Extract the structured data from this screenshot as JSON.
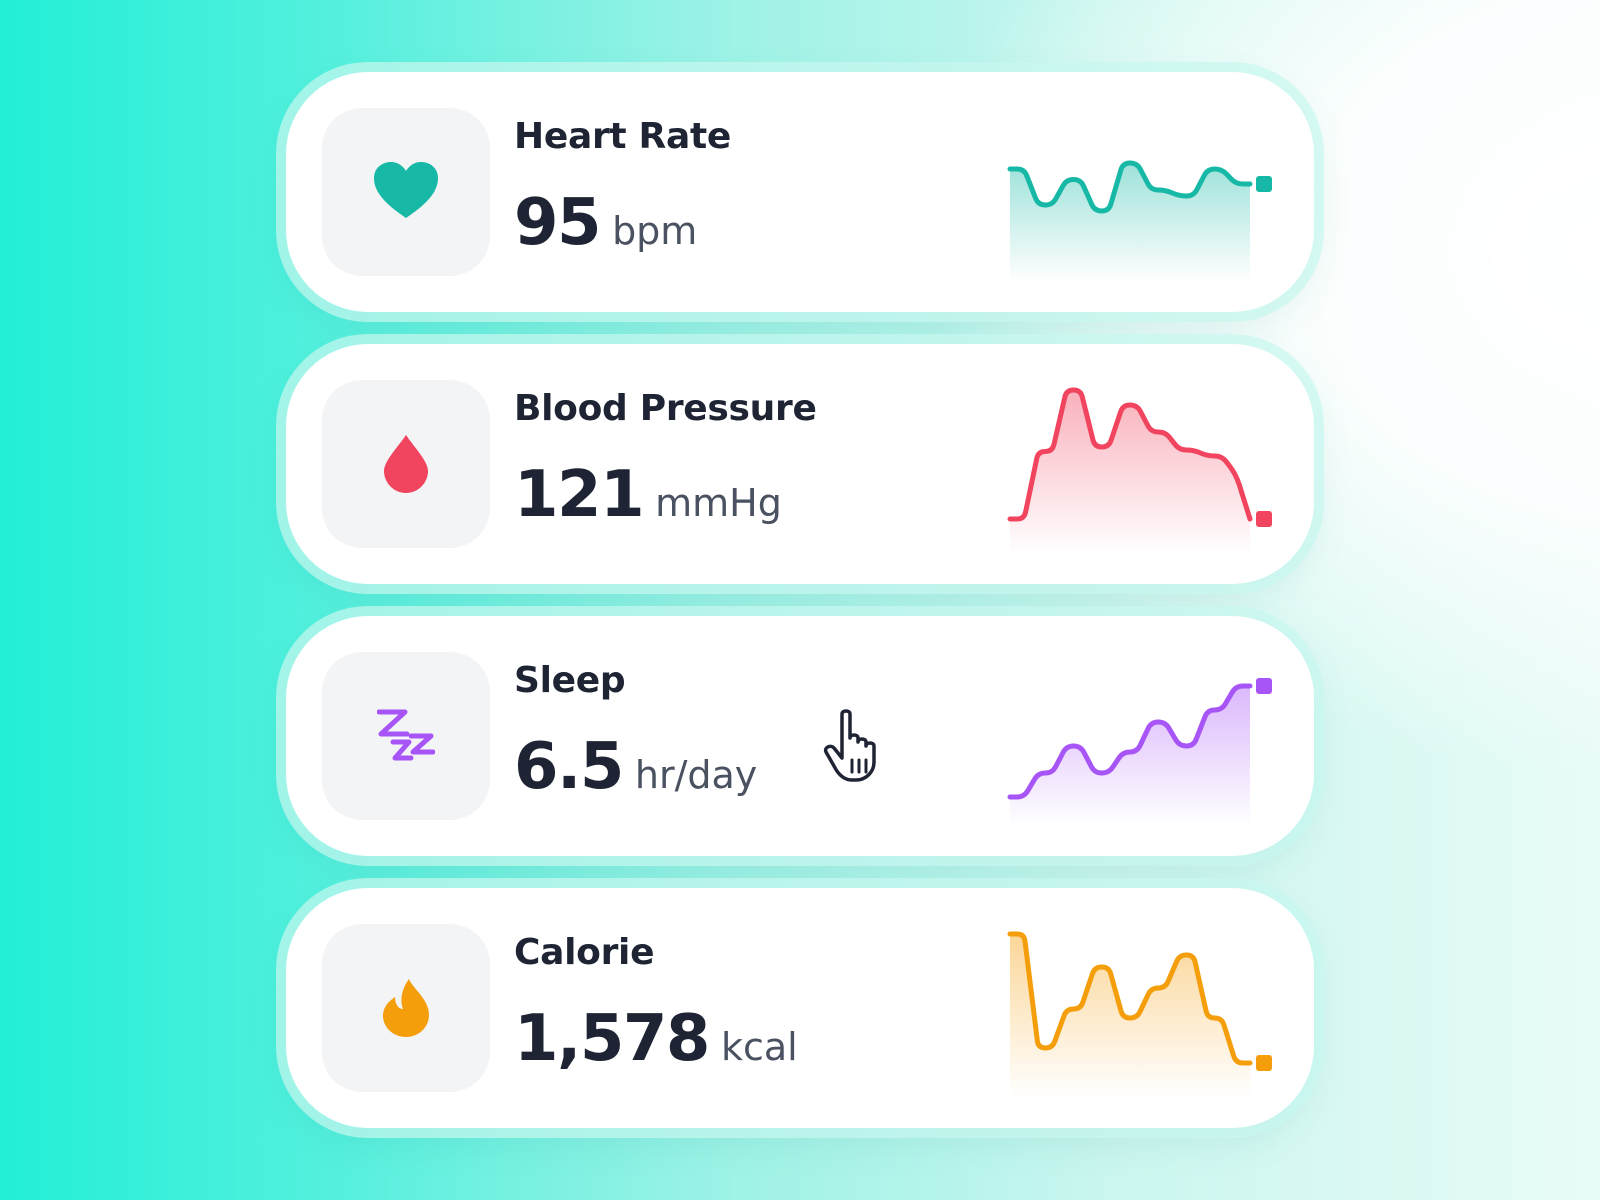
{
  "cards": [
    {
      "id": "heart-rate",
      "title": "Heart Rate",
      "value": "95",
      "unit": "bpm",
      "icon": "heart-icon",
      "color": "#17b9a6",
      "trend": [
        62,
        62,
        38,
        38,
        55,
        55,
        34,
        34,
        66,
        66,
        48,
        48,
        44,
        44,
        62,
        62,
        52,
        52
      ]
    },
    {
      "id": "blood-pressure",
      "title": "Blood Pressure",
      "value": "121",
      "unit": "mmHg",
      "icon": "blood-drop-icon",
      "color": "#f1445e",
      "trend": [
        10,
        10,
        55,
        55,
        96,
        96,
        58,
        58,
        86,
        86,
        68,
        68,
        56,
        56,
        52,
        52,
        40,
        10
      ]
    },
    {
      "id": "sleep",
      "title": "Sleep",
      "value": "6.5",
      "unit": "hr/day",
      "icon": "zzz-icon",
      "color": "#a855f7",
      "trend": [
        6,
        6,
        22,
        22,
        40,
        40,
        22,
        22,
        36,
        36,
        56,
        56,
        40,
        40,
        64,
        64,
        80,
        80
      ]
    },
    {
      "id": "calorie",
      "title": "Calorie",
      "value": "1,578",
      "unit": "kcal",
      "icon": "flame-icon",
      "color": "#f59e0b",
      "trend": [
        96,
        96,
        20,
        20,
        46,
        46,
        74,
        74,
        40,
        40,
        60,
        60,
        82,
        82,
        40,
        40,
        10,
        10
      ]
    }
  ]
}
